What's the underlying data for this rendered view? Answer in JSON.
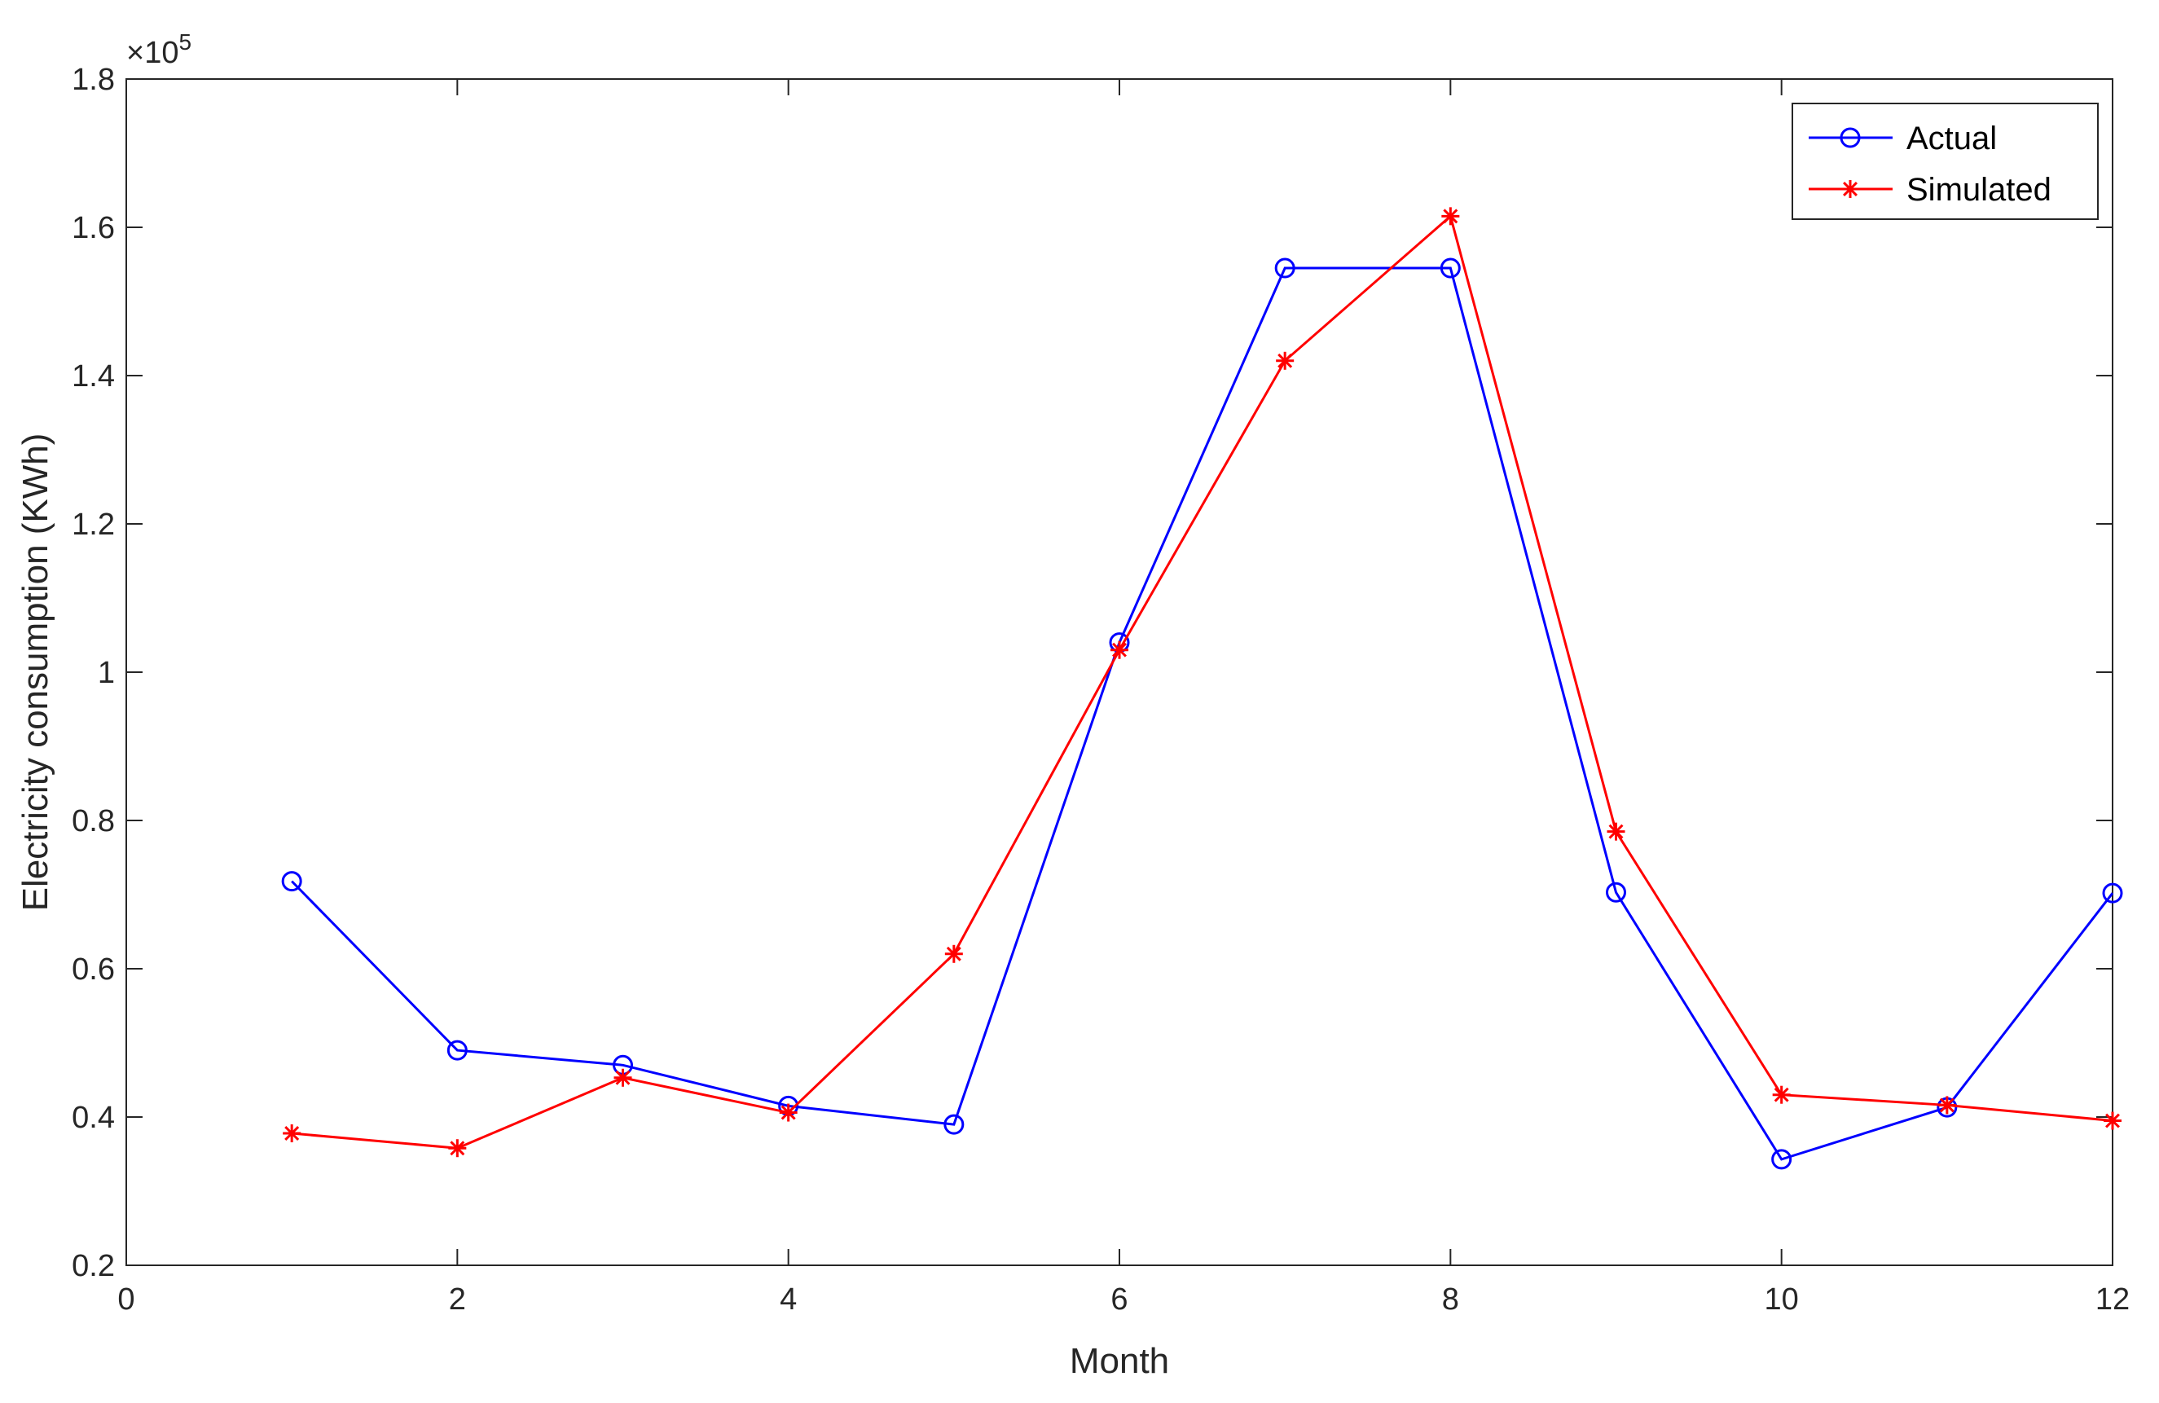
{
  "chart_data": {
    "type": "line",
    "title": "",
    "xlabel": "Month",
    "ylabel": "Electricity consumption (KWh)",
    "y_multiplier": {
      "base": "×10",
      "exponent": "5"
    },
    "xlim": [
      0,
      12
    ],
    "ylim": [
      0.2,
      1.8
    ],
    "x_ticks": [
      0,
      2,
      4,
      6,
      8,
      10,
      12
    ],
    "y_ticks": [
      0.2,
      0.4,
      0.6,
      0.8,
      1,
      1.2,
      1.4,
      1.6,
      1.8
    ],
    "x_tick_labels": [
      "0",
      "2",
      "4",
      "6",
      "8",
      "10",
      "12"
    ],
    "y_tick_labels": [
      "0.2",
      "0.4",
      "0.6",
      "0.8",
      "1",
      "1.2",
      "1.4",
      "1.6",
      "1.8"
    ],
    "grid": false,
    "legend_position": "top-right",
    "x": [
      1,
      2,
      3,
      4,
      5,
      6,
      7,
      8,
      9,
      10,
      11,
      12
    ],
    "series": [
      {
        "name": "Actual",
        "color": "#0000ff",
        "marker": "circle",
        "values": [
          0.718,
          0.49,
          0.47,
          0.415,
          0.39,
          1.04,
          1.545,
          1.545,
          0.703,
          0.343,
          0.413,
          0.702
        ]
      },
      {
        "name": "Simulated",
        "color": "#ff0000",
        "marker": "asterisk",
        "values": [
          0.378,
          0.358,
          0.453,
          0.406,
          0.62,
          1.03,
          1.42,
          1.615,
          0.785,
          0.43,
          0.416,
          0.395
        ]
      }
    ]
  }
}
